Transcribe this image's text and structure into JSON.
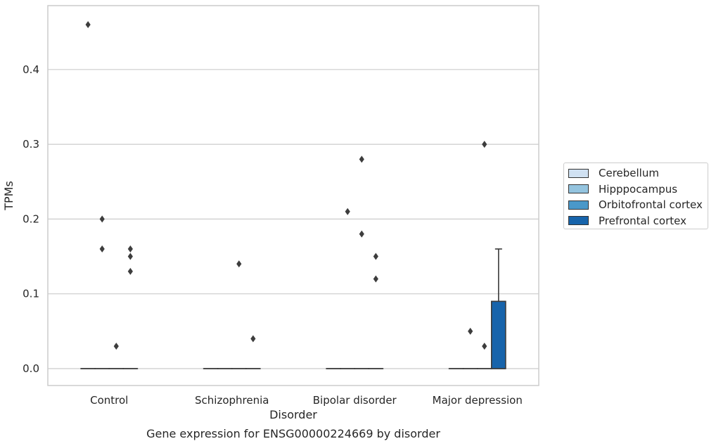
{
  "chart_data": {
    "type": "box",
    "title": "",
    "caption": "Gene expression for ENSG00000224669 by disorder",
    "xlabel": "Disorder",
    "ylabel": "TPMs",
    "ylim": [
      -0.023,
      0.46
    ],
    "yticks": [
      0.0,
      0.1,
      0.2,
      0.3,
      0.4
    ],
    "ytick_labels": [
      "0.0",
      "0.1",
      "0.2",
      "0.3",
      "0.4"
    ],
    "grid": "horizontal",
    "legend_position": "center-right",
    "categories": [
      "Control",
      "Schizophrenia",
      "Bipolar disorder",
      "Major depression"
    ],
    "series": [
      {
        "name": "Cerebellum",
        "color": "#d0e1f2"
      },
      {
        "name": "Hipppocampus",
        "color": "#94c4df"
      },
      {
        "name": "Orbitofrontal cortex",
        "color": "#4a98c9"
      },
      {
        "name": "Prefrontal cortex",
        "color": "#1764ab"
      }
    ],
    "boxes": [
      {
        "category": "Control",
        "series": "Cerebellum",
        "q1": 0,
        "median": 0,
        "q3": 0,
        "whisker_low": 0,
        "whisker_high": 0,
        "outliers": [
          0.46
        ]
      },
      {
        "category": "Control",
        "series": "Hipppocampus",
        "q1": 0,
        "median": 0,
        "q3": 0,
        "whisker_low": 0,
        "whisker_high": 0,
        "outliers": [
          0.2,
          0.16
        ]
      },
      {
        "category": "Control",
        "series": "Orbitofrontal cortex",
        "q1": 0,
        "median": 0,
        "q3": 0,
        "whisker_low": 0,
        "whisker_high": 0,
        "outliers": [
          0.03
        ]
      },
      {
        "category": "Control",
        "series": "Prefrontal cortex",
        "q1": 0,
        "median": 0,
        "q3": 0,
        "whisker_low": 0,
        "whisker_high": 0,
        "outliers": [
          0.16,
          0.15,
          0.13
        ]
      },
      {
        "category": "Schizophrenia",
        "series": "Cerebellum",
        "q1": 0,
        "median": 0,
        "q3": 0,
        "whisker_low": 0,
        "whisker_high": 0,
        "outliers": []
      },
      {
        "category": "Schizophrenia",
        "series": "Hipppocampus",
        "q1": 0,
        "median": 0,
        "q3": 0,
        "whisker_low": 0,
        "whisker_high": 0,
        "outliers": []
      },
      {
        "category": "Schizophrenia",
        "series": "Orbitofrontal cortex",
        "q1": 0,
        "median": 0,
        "q3": 0,
        "whisker_low": 0,
        "whisker_high": 0,
        "outliers": [
          0.14
        ]
      },
      {
        "category": "Schizophrenia",
        "series": "Prefrontal cortex",
        "q1": 0,
        "median": 0,
        "q3": 0,
        "whisker_low": 0,
        "whisker_high": 0,
        "outliers": [
          0.04
        ]
      },
      {
        "category": "Bipolar disorder",
        "series": "Cerebellum",
        "q1": 0,
        "median": 0,
        "q3": 0,
        "whisker_low": 0,
        "whisker_high": 0,
        "outliers": []
      },
      {
        "category": "Bipolar disorder",
        "series": "Hipppocampus",
        "q1": 0,
        "median": 0,
        "q3": 0,
        "whisker_low": 0,
        "whisker_high": 0,
        "outliers": [
          0.21
        ]
      },
      {
        "category": "Bipolar disorder",
        "series": "Orbitofrontal cortex",
        "q1": 0,
        "median": 0,
        "q3": 0,
        "whisker_low": 0,
        "whisker_high": 0,
        "outliers": [
          0.28,
          0.18
        ]
      },
      {
        "category": "Bipolar disorder",
        "series": "Prefrontal cortex",
        "q1": 0,
        "median": 0,
        "q3": 0,
        "whisker_low": 0,
        "whisker_high": 0,
        "outliers": [
          0.15,
          0.12
        ]
      },
      {
        "category": "Major depression",
        "series": "Cerebellum",
        "q1": 0,
        "median": 0,
        "q3": 0,
        "whisker_low": 0,
        "whisker_high": 0,
        "outliers": []
      },
      {
        "category": "Major depression",
        "series": "Hipppocampus",
        "q1": 0,
        "median": 0,
        "q3": 0,
        "whisker_low": 0,
        "whisker_high": 0,
        "outliers": [
          0.05
        ]
      },
      {
        "category": "Major depression",
        "series": "Orbitofrontal cortex",
        "q1": 0,
        "median": 0,
        "q3": 0,
        "whisker_low": 0,
        "whisker_high": 0,
        "outliers": [
          0.03,
          0.3
        ]
      },
      {
        "category": "Major depression",
        "series": "Prefrontal cortex",
        "q1": 0,
        "median": 0,
        "q3": 0.09,
        "whisker_low": 0,
        "whisker_high": 0.16,
        "outliers": []
      }
    ]
  }
}
